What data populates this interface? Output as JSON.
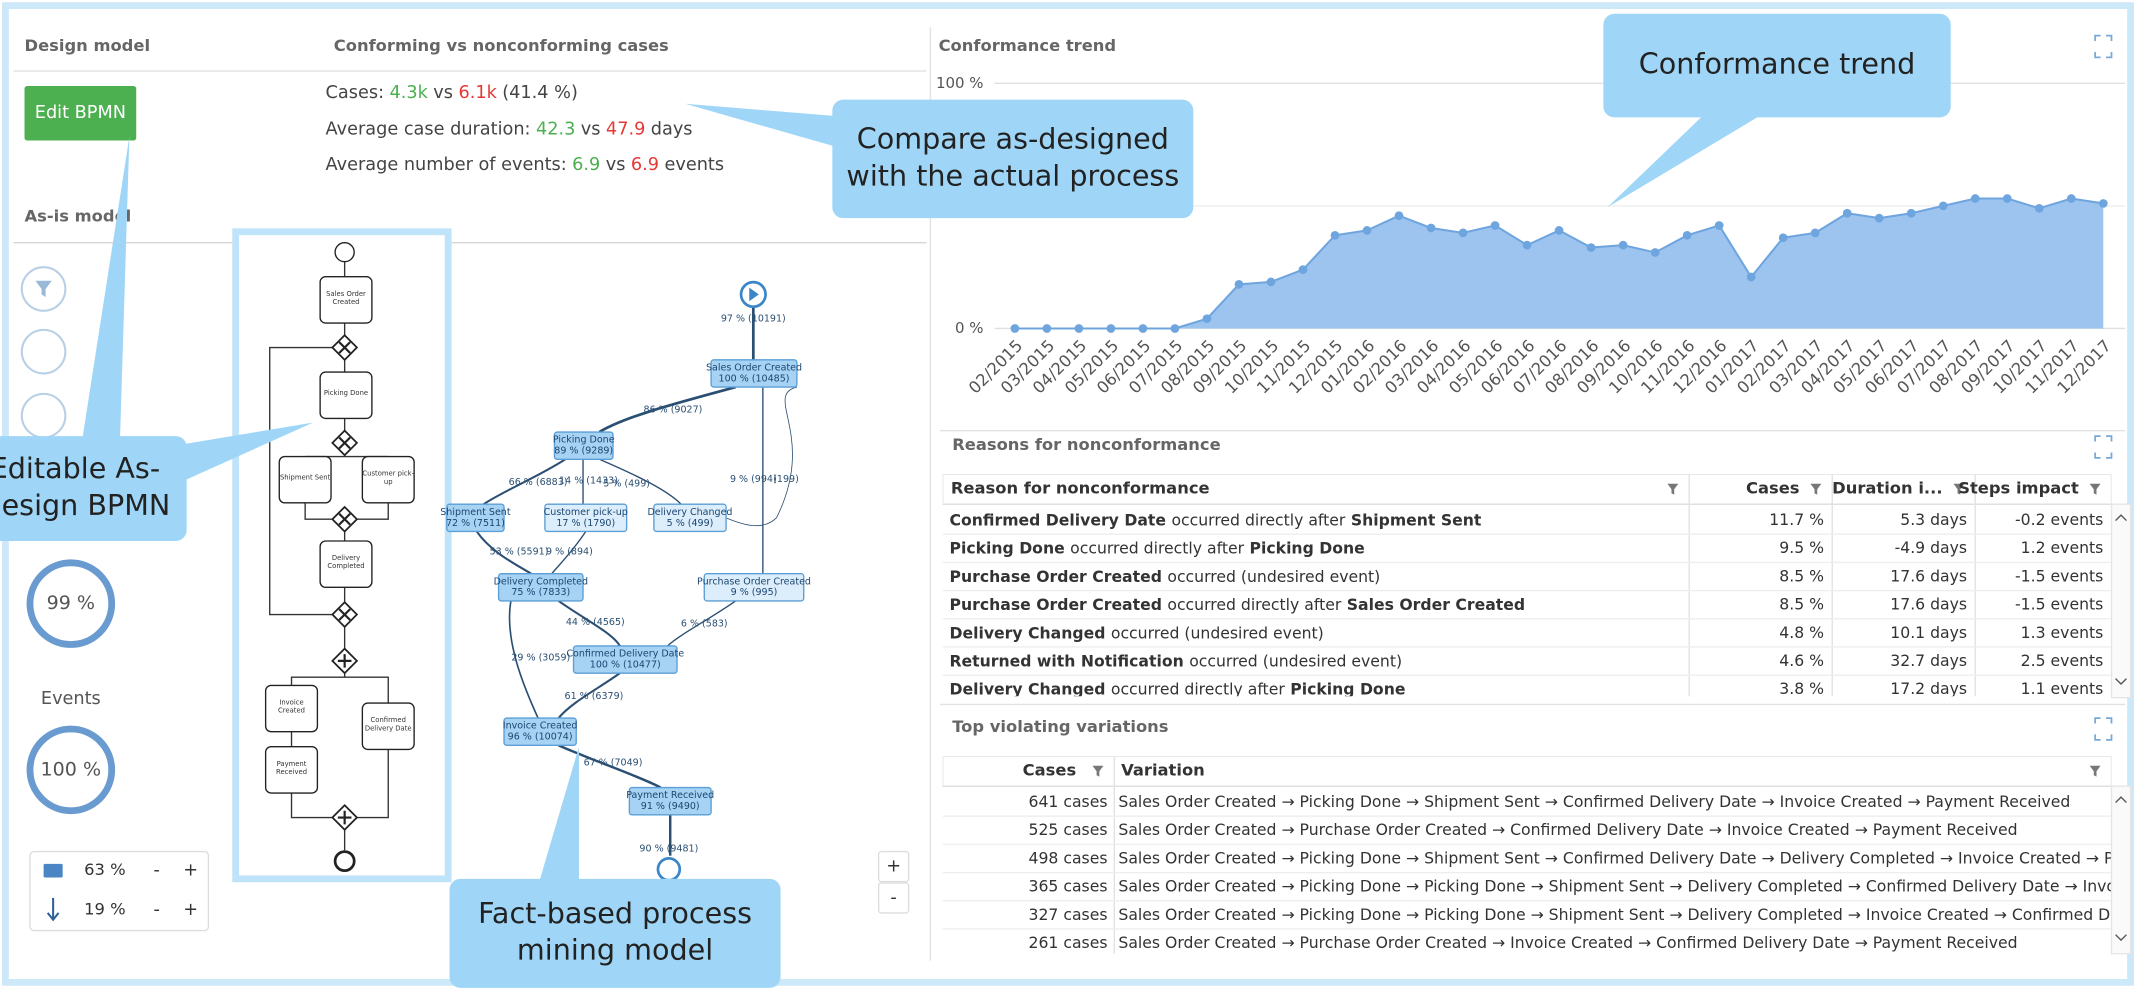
{
  "panels": {
    "design_model": "Design model",
    "conforming": "Conforming vs nonconforming cases",
    "trend": "Conformance trend",
    "as_is": "As-is model",
    "reasons": "Reasons for nonconformance",
    "variations": "Top violating variations"
  },
  "edit_button": "Edit BPMN",
  "stats": [
    {
      "label": "Cases:",
      "conforming": "4.3k",
      "vs": "vs",
      "nonconforming": "6.1k",
      "suffix": "(41.4 %)"
    },
    {
      "label": "Average case duration:",
      "conforming": "42.3",
      "vs": "vs",
      "nonconforming": "47.9",
      "suffix": "days"
    },
    {
      "label": "Average number of events:",
      "conforming": "6.9",
      "vs": "vs",
      "nonconforming": "6.9",
      "suffix": "events"
    }
  ],
  "donuts": [
    {
      "value": "99 %"
    },
    {
      "label": "Events",
      "value": "100 %"
    }
  ],
  "view_controls": [
    {
      "value": "63 %",
      "minus": "-",
      "plus": "+"
    },
    {
      "value": "19 %",
      "minus": "-",
      "plus": "+"
    }
  ],
  "zoom": {
    "plus": "+",
    "minus": "-"
  },
  "bpmn_nodes": [
    "Sales Order Created",
    "Picking Done",
    "Shipment Sent",
    "Customer pick-up",
    "Delivery Completed",
    "Invoice Created",
    "Confirmed Delivery Date",
    "Payment Received"
  ],
  "process_nodes": [
    {
      "name": "Sales Order Created",
      "stat": "100 % (10485)"
    },
    {
      "name": "Picking Done",
      "stat": "89 % (9289)"
    },
    {
      "name": "Shipment Sent",
      "stat": "72 % (7511)"
    },
    {
      "name": "Customer pick-up",
      "stat": "17 % (1790)"
    },
    {
      "name": "Delivery Changed",
      "stat": "5 % (499)"
    },
    {
      "name": "Purchase Order Created",
      "stat": "9 % (995)"
    },
    {
      "name": "Delivery Completed",
      "stat": "75 % (7833)"
    },
    {
      "name": "Confirmed Delivery Date",
      "stat": "100 % (10477)"
    },
    {
      "name": "Invoice Created",
      "stat": "96 % (10074)"
    },
    {
      "name": "Payment Received",
      "stat": "91 % (9490)"
    }
  ],
  "process_edges": [
    "97 % (10191)",
    "86 % (9027)",
    "66 % (6883)",
    "14 % (1433)",
    "5 % (499)",
    "9 % (994)",
    "(199)",
    "53 % (5591)",
    "9 % (894)",
    "44 % (4565)",
    "6 % (583)",
    "29 % (3059)",
    "61 % (6379)",
    "67 % (7049)",
    "90 % (9481)"
  ],
  "reasons_table": {
    "headers": [
      "Reason for nonconformance",
      "Cases",
      "Duration i...",
      "Steps impact"
    ],
    "rows": [
      {
        "subject": "Confirmed Delivery Date",
        "relation": "occurred directly after",
        "object": "Shipment Sent",
        "cases": "11.7 %",
        "duration": "5.3 days",
        "steps": "-0.2 events"
      },
      {
        "subject": "Picking Done",
        "relation": "occurred directly after",
        "object": "Picking Done",
        "cases": "9.5 %",
        "duration": "-4.9 days",
        "steps": "1.2 events"
      },
      {
        "subject": "Purchase Order Created",
        "relation": "occurred (undesired event)",
        "cases": "8.5 %",
        "duration": "17.6 days",
        "steps": "-1.5 events"
      },
      {
        "subject": "Purchase Order Created",
        "relation": "occurred directly after",
        "object": "Sales Order Created",
        "cases": "8.5 %",
        "duration": "17.6 days",
        "steps": "-1.5 events"
      },
      {
        "subject": "Delivery Changed",
        "relation": "occurred (undesired event)",
        "cases": "4.8 %",
        "duration": "10.1 days",
        "steps": "1.3 events"
      },
      {
        "subject": "Returned with Notification",
        "relation": "occurred (undesired event)",
        "cases": "4.6 %",
        "duration": "32.7 days",
        "steps": "2.5 events"
      },
      {
        "subject": "Delivery Changed",
        "relation": "occurred directly after",
        "object": "Picking Done",
        "cases": "3.8 %",
        "duration": "17.2 days",
        "steps": "1.1 events"
      }
    ]
  },
  "variations_table": {
    "headers": [
      "Cases",
      "Variation"
    ],
    "rows": [
      [
        "641 cases",
        "Sales Order Created → Picking Done → Shipment Sent → Confirmed Delivery Date → Invoice Created → Payment Received"
      ],
      [
        "525 cases",
        "Sales Order Created → Purchase Order Created → Confirmed Delivery Date → Invoice Created → Payment Received"
      ],
      [
        "498 cases",
        "Sales Order Created → Picking Done → Shipment Sent → Confirmed Delivery Date → Delivery Completed → Invoice Created → Payment Received"
      ],
      [
        "365 cases",
        "Sales Order Created → Picking Done → Picking Done → Shipment Sent → Delivery Completed → Confirmed Delivery Date → Invoice Created → Payment Received"
      ],
      [
        "327 cases",
        "Sales Order Created → Picking Done → Picking Done → Shipment Sent → Delivery Completed → Invoice Created → Confirmed Delivery Date → Payment Received"
      ],
      [
        "261 cases",
        "Sales Order Created → Purchase Order Created → Invoice Created → Confirmed Delivery Date → Payment Received"
      ]
    ]
  },
  "callouts": {
    "trend": [
      "Conformance trend"
    ],
    "compare": [
      "Compare as-designed",
      "with the actual process"
    ],
    "bpmn": [
      "Editable As-",
      "Design BPMN"
    ],
    "mining": [
      "Fact-based process",
      "mining model"
    ]
  },
  "chart_data": {
    "type": "area",
    "color": "#9cc4ef",
    "line_color": "#6fa5df",
    "x": [
      "02/2015",
      "03/2015",
      "04/2015",
      "05/2015",
      "06/2015",
      "07/2015",
      "08/2015",
      "09/2015",
      "10/2015",
      "11/2015",
      "12/2015",
      "01/2016",
      "02/2016",
      "03/2016",
      "04/2016",
      "05/2016",
      "06/2016",
      "07/2016",
      "08/2016",
      "09/2016",
      "10/2016",
      "11/2016",
      "12/2016",
      "01/2017",
      "02/2017",
      "03/2017",
      "04/2017",
      "05/2017",
      "06/2017",
      "07/2017",
      "08/2017",
      "09/2017",
      "10/2017",
      "11/2017",
      "12/2017"
    ],
    "values": [
      0,
      0,
      0,
      0,
      0,
      0,
      4,
      18,
      19,
      24,
      38,
      40,
      46,
      41,
      39,
      42,
      34,
      40,
      33,
      34,
      31,
      38,
      42,
      21,
      37,
      39,
      47,
      45,
      47,
      50,
      53,
      53,
      49,
      53,
      51
    ],
    "ylim": [
      0,
      100
    ],
    "yticks": [
      {
        "value": 0,
        "label": "0 %"
      },
      {
        "value": 100,
        "label": "100 %"
      }
    ]
  }
}
